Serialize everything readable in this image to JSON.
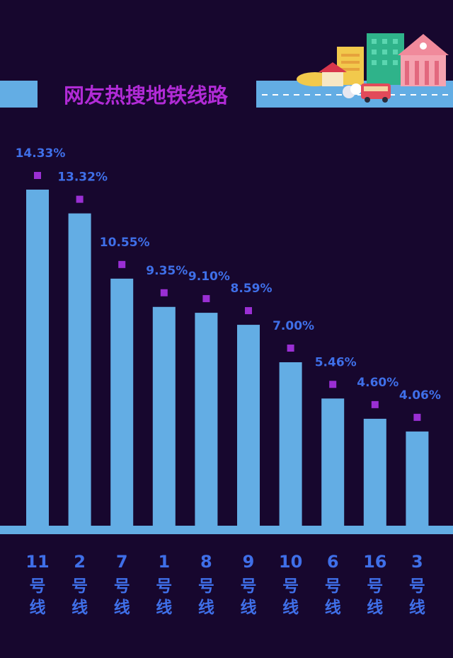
{
  "title": "网友热搜地铁线路",
  "colors": {
    "background": "#17072e",
    "bar": "#63ade4",
    "label": "#3f6fe8",
    "marker": "#9a2fd4",
    "title": "#b12bd6",
    "title_band": "#63ade4"
  },
  "chart_data": {
    "type": "bar",
    "title": "网友热搜地铁线路",
    "categories": [
      "11号线",
      "2号线",
      "7号线",
      "1号线",
      "8号线",
      "9号线",
      "10号线",
      "6号线",
      "16号线",
      "3号线"
    ],
    "category_numbers": [
      "11",
      "2",
      "7",
      "1",
      "8",
      "9",
      "10",
      "6",
      "16",
      "3"
    ],
    "category_suffix_1": "号",
    "category_suffix_2": "线",
    "values": [
      14.33,
      13.32,
      10.55,
      9.35,
      9.1,
      8.59,
      7.0,
      5.46,
      4.6,
      4.06
    ],
    "value_labels": [
      "14.33%",
      "13.32%",
      "10.55%",
      "9.35%",
      "9.10%",
      "8.59%",
      "7.00%",
      "5.46%",
      "4.60%",
      "4.06%"
    ],
    "unit": "%",
    "xlabel": "",
    "ylabel": "",
    "ylim": [
      0,
      14.33
    ],
    "grid": false,
    "legend": "none"
  }
}
